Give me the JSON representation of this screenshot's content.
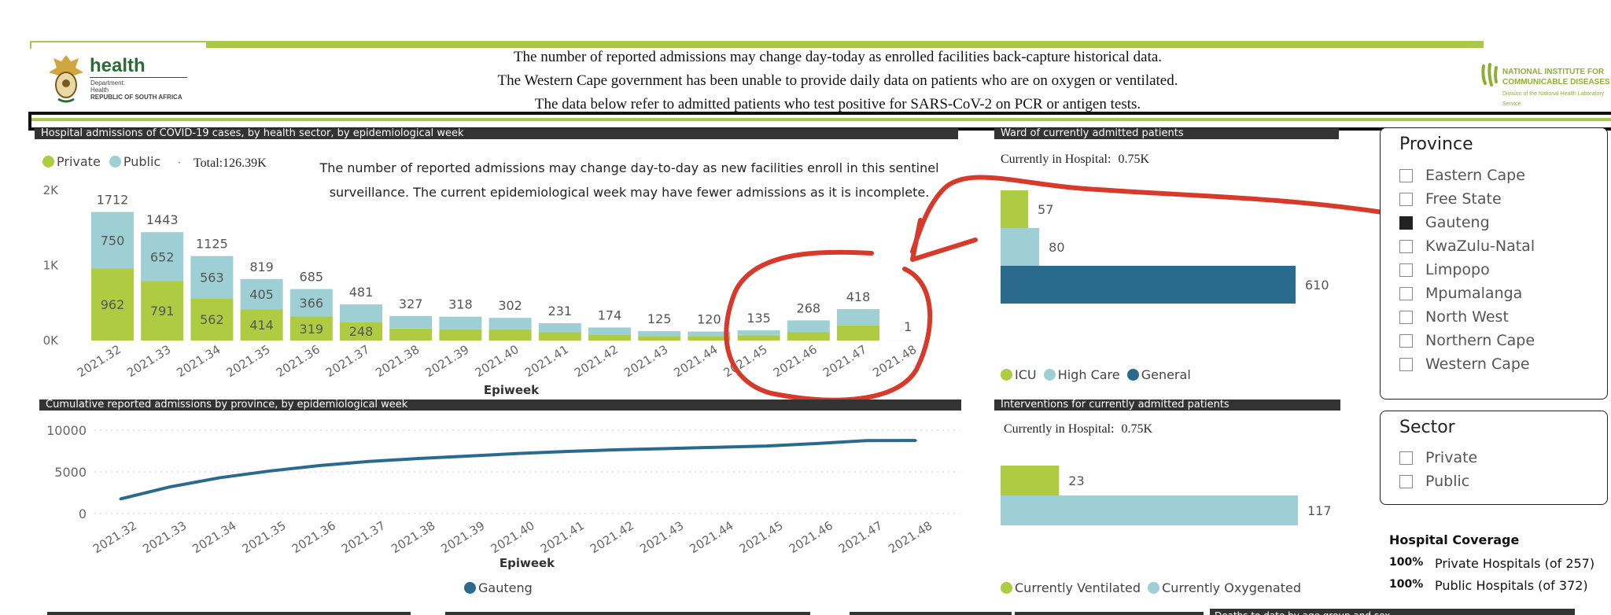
{
  "header": {
    "logo_word": "health",
    "dept_line1": "Department:",
    "dept_line2": "Health",
    "dept_line3": "REPUBLIC OF SOUTH AFRICA",
    "notices": [
      "The number of reported admissions may change day-today as enrolled facilities back-capture historical data.",
      "The Western Cape government has been unable to provide daily data on patients who are on oxygen or ventilated.",
      "The data below refer to admitted patients who test positive for SARS-CoV-2 on PCR or antigen tests."
    ],
    "nicd_line1": "NATIONAL INSTITUTE FOR",
    "nicd_line2": "COMMUNICABLE DISEASES",
    "nicd_line3": "Division of the National Health Laboratory Service"
  },
  "colors": {
    "private": "#aecb42",
    "public": "#9dcfd4",
    "general": "#2a6a8c",
    "annotation": "#d63a2a"
  },
  "admissions": {
    "title": "Hospital admissions of COVID-19 cases, by health sector, by epidemiological week",
    "legend_private": "Private",
    "legend_public": "Public",
    "total": "Total:126.39K",
    "note_line1": "The number of reported admissions may change day-to-day as new facilities enroll in this sentinel",
    "note_line2": "surveillance. The current epidemiological week may have fewer admissions as it is incomplete.",
    "xlabel": "Epiweek"
  },
  "cumulative": {
    "title": "Cumulative reported admissions by province, by epidemiological week",
    "xlabel": "Epiweek",
    "legend": "Gauteng"
  },
  "ward": {
    "title": "Ward of currently admitted patients",
    "currently_label": "Currently in Hospital:",
    "currently_value": "0.75K",
    "legend_icu": "ICU",
    "legend_high": "High Care",
    "legend_general": "General"
  },
  "interventions": {
    "title": "Interventions for currently admitted patients",
    "currently_label": "Currently in Hospital:",
    "currently_value": "0.75K",
    "legend_vent": "Currently Ventilated",
    "legend_oxy": "Currently Oxygenated"
  },
  "province": {
    "title": "Province",
    "items": [
      "Eastern Cape",
      "Free State",
      "Gauteng",
      "KwaZulu-Natal",
      "Limpopo",
      "Mpumalanga",
      "North West",
      "Northern Cape",
      "Western Cape"
    ],
    "selected": "Gauteng"
  },
  "sector": {
    "title": "Sector",
    "items": [
      "Private",
      "Public"
    ]
  },
  "coverage": {
    "title": "Hospital Coverage",
    "rows": [
      {
        "pct": "100%",
        "label": "Private Hospitals (of 257)"
      },
      {
        "pct": "100%",
        "label": "Public Hospitals (of 372)"
      }
    ]
  },
  "bottom_cut_label": "Deaths to date by age group and sex",
  "chart_data": [
    {
      "type": "bar",
      "title": "Hospital admissions of COVID-19 cases, by health sector, by epidemiological week",
      "xlabel": "Epiweek",
      "ylabel": "",
      "ylim": [
        0,
        2000
      ],
      "yticks": [
        "0K",
        "1K",
        "2K"
      ],
      "categories": [
        "2021.32",
        "2021.33",
        "2021.34",
        "2021.35",
        "2021.36",
        "2021.37",
        "2021.38",
        "2021.39",
        "2021.40",
        "2021.41",
        "2021.42",
        "2021.43",
        "2021.44",
        "2021.45",
        "2021.46",
        "2021.47",
        "2021.48"
      ],
      "series": [
        {
          "name": "Private",
          "values": [
            962,
            791,
            562,
            414,
            319,
            248,
            160,
            150,
            150,
            110,
            80,
            60,
            60,
            70,
            110,
            200,
            0
          ]
        },
        {
          "name": "Public",
          "values": [
            750,
            652,
            563,
            405,
            366,
            233,
            167,
            168,
            152,
            121,
            94,
            65,
            60,
            65,
            158,
            218,
            1
          ]
        }
      ],
      "totals": [
        1712,
        1443,
        1125,
        819,
        685,
        481,
        327,
        318,
        302,
        231,
        174,
        125,
        120,
        135,
        268,
        418,
        1
      ],
      "labeled_private": [
        962,
        791,
        562,
        414,
        319,
        248
      ],
      "labeled_public": [
        750,
        652,
        563,
        405,
        366
      ],
      "stacked": true,
      "legend": "top-left"
    },
    {
      "type": "line",
      "title": "Cumulative reported admissions by province, by epidemiological week",
      "xlabel": "Epiweek",
      "ylim": [
        0,
        10000
      ],
      "yticks": [
        "0",
        "5000",
        "10000"
      ],
      "x": [
        "2021.32",
        "2021.33",
        "2021.34",
        "2021.35",
        "2021.36",
        "2021.37",
        "2021.38",
        "2021.39",
        "2021.40",
        "2021.41",
        "2021.42",
        "2021.43",
        "2021.44",
        "2021.45",
        "2021.46",
        "2021.47",
        "2021.48"
      ],
      "series": [
        {
          "name": "Gauteng",
          "values": [
            1750,
            3200,
            4300,
            5100,
            5750,
            6250,
            6600,
            6900,
            7200,
            7450,
            7650,
            7800,
            7950,
            8100,
            8400,
            8750,
            8760
          ]
        }
      ],
      "legend": "bottom-center"
    },
    {
      "type": "bar",
      "orientation": "horizontal",
      "title": "Ward of currently admitted patients",
      "categories": [
        "ICU",
        "High Care",
        "General"
      ],
      "values": [
        57,
        80,
        610
      ],
      "legend": "bottom-left"
    },
    {
      "type": "bar",
      "orientation": "horizontal",
      "title": "Interventions for currently admitted patients",
      "categories": [
        "Currently Ventilated",
        "Currently Oxygenated"
      ],
      "values": [
        23,
        117
      ],
      "legend": "bottom-left"
    }
  ]
}
